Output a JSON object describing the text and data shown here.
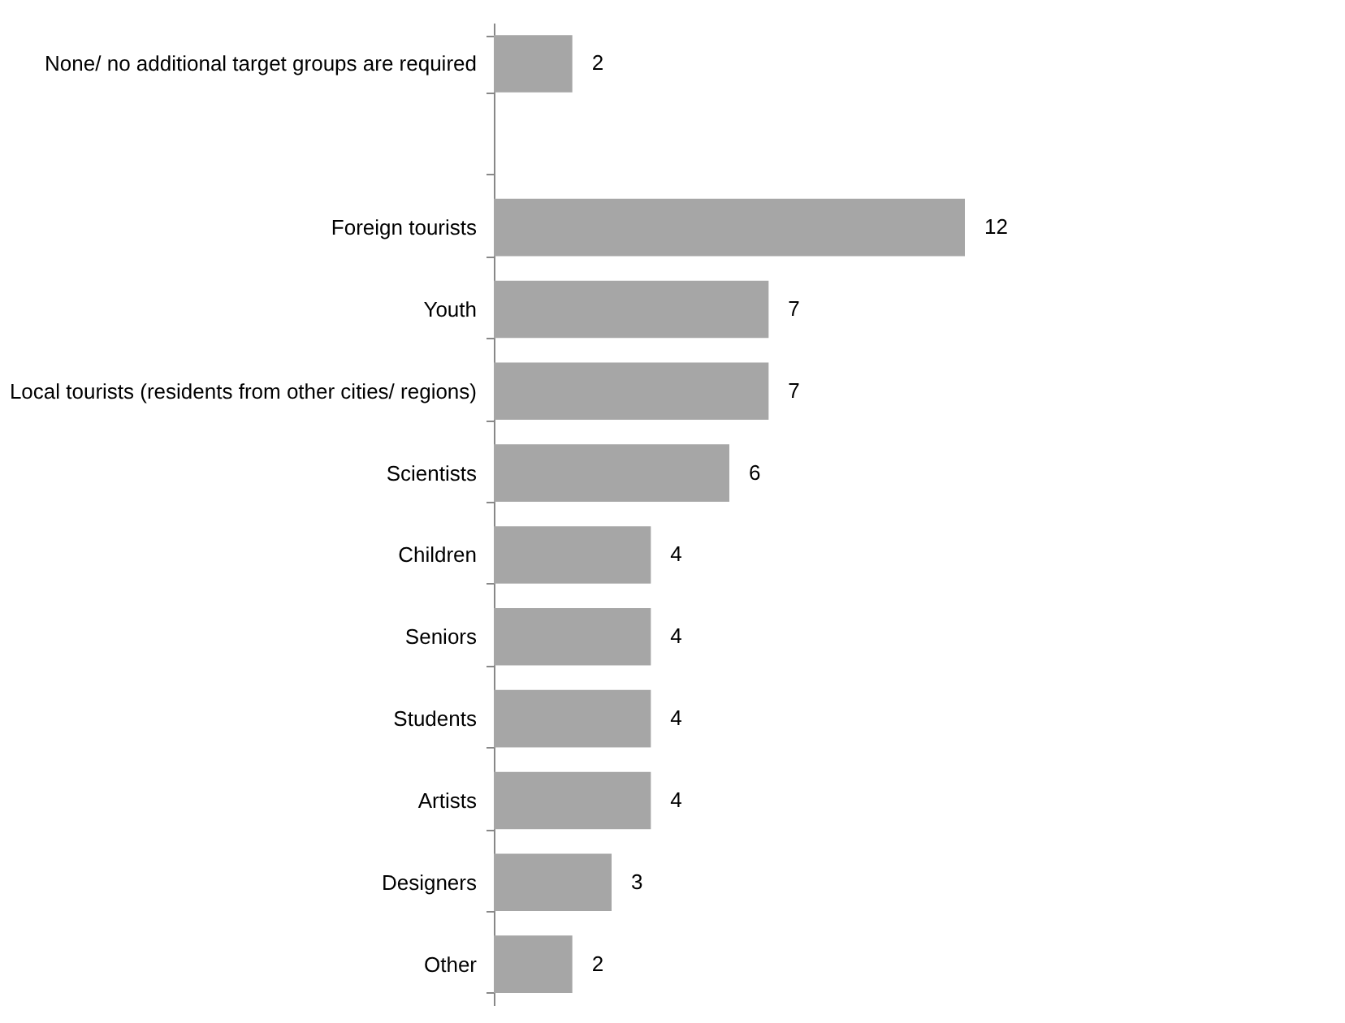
{
  "chart_data": {
    "type": "bar",
    "orientation": "horizontal",
    "categories": [
      "None/ no additional target groups are required",
      null,
      "Foreign tourists",
      "Youth",
      "Local tourists (residents from other cities/ regions)",
      "Scientists",
      "Children",
      "Seniors",
      "Students",
      "Artists",
      "Designers",
      "Other"
    ],
    "values": [
      2,
      null,
      12,
      7,
      7,
      6,
      4,
      4,
      4,
      4,
      3,
      2
    ],
    "color": "#a6a6a6",
    "data_labels": true
  }
}
